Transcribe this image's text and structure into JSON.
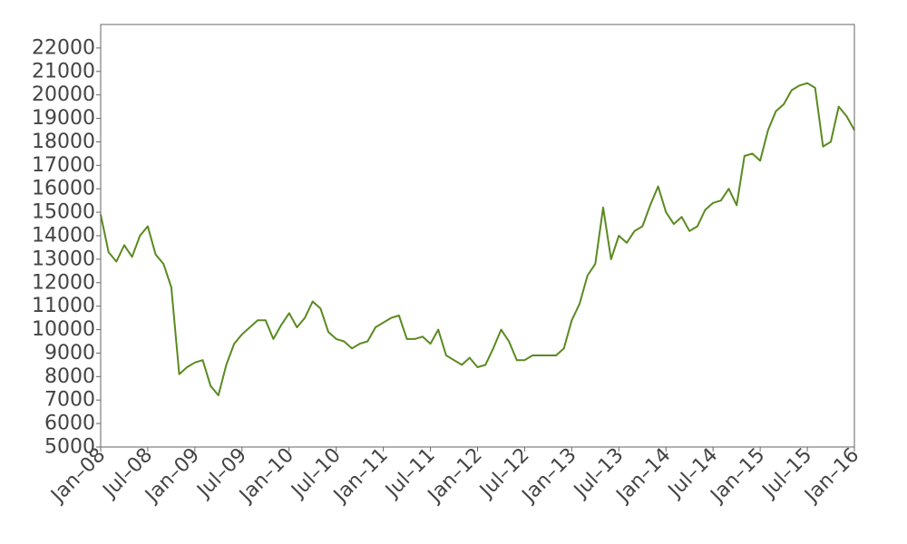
{
  "chart_data": {
    "type": "line",
    "title": "",
    "xlabel": "",
    "ylabel": "",
    "xlim": [
      "2008-01",
      "2016-01"
    ],
    "ylim": [
      5000,
      23000
    ],
    "grid": false,
    "legend": "none",
    "x_tick_labels": [
      "Jan–08",
      "Jul–08",
      "Jan–09",
      "Jul–09",
      "Jan–10",
      "Jul–10",
      "Jan–11",
      "Jul–11",
      "Jan–12",
      "Jul–12",
      "Jan–13",
      "Jul–13",
      "Jan–14",
      "Jul–14",
      "Jan–15",
      "Jul–15",
      "Jan–16"
    ],
    "y_ticks": [
      5000,
      6000,
      7000,
      8000,
      9000,
      10000,
      11000,
      12000,
      13000,
      14000,
      15000,
      16000,
      17000,
      18000,
      19000,
      20000,
      21000,
      22000
    ],
    "series": [
      {
        "color": "#5a8a20",
        "points": [
          [
            "2008-01",
            14900
          ],
          [
            "2008-02",
            13300
          ],
          [
            "2008-03",
            12900
          ],
          [
            "2008-04",
            13600
          ],
          [
            "2008-05",
            13100
          ],
          [
            "2008-06",
            14000
          ],
          [
            "2008-07",
            14400
          ],
          [
            "2008-08",
            13200
          ],
          [
            "2008-09",
            12800
          ],
          [
            "2008-10",
            11800
          ],
          [
            "2008-11",
            8100
          ],
          [
            "2008-12",
            8400
          ],
          [
            "2009-01",
            8600
          ],
          [
            "2009-02",
            8700
          ],
          [
            "2009-03",
            7600
          ],
          [
            "2009-04",
            7200
          ],
          [
            "2009-05",
            8500
          ],
          [
            "2009-06",
            9400
          ],
          [
            "2009-07",
            9800
          ],
          [
            "2009-08",
            10100
          ],
          [
            "2009-09",
            10400
          ],
          [
            "2009-10",
            10400
          ],
          [
            "2009-11",
            9600
          ],
          [
            "2009-12",
            10200
          ],
          [
            "2010-01",
            10700
          ],
          [
            "2010-02",
            10100
          ],
          [
            "2010-03",
            10500
          ],
          [
            "2010-04",
            11200
          ],
          [
            "2010-05",
            10900
          ],
          [
            "2010-06",
            9900
          ],
          [
            "2010-07",
            9600
          ],
          [
            "2010-08",
            9500
          ],
          [
            "2010-09",
            9200
          ],
          [
            "2010-10",
            9400
          ],
          [
            "2010-11",
            9500
          ],
          [
            "2010-12",
            10100
          ],
          [
            "2011-01",
            10300
          ],
          [
            "2011-02",
            10500
          ],
          [
            "2011-03",
            10600
          ],
          [
            "2011-04",
            9600
          ],
          [
            "2011-05",
            9600
          ],
          [
            "2011-06",
            9700
          ],
          [
            "2011-07",
            9400
          ],
          [
            "2011-08",
            10000
          ],
          [
            "2011-09",
            8900
          ],
          [
            "2011-10",
            8700
          ],
          [
            "2011-11",
            8500
          ],
          [
            "2011-12",
            8800
          ],
          [
            "2012-01",
            8400
          ],
          [
            "2012-02",
            8500
          ],
          [
            "2012-03",
            9200
          ],
          [
            "2012-04",
            10000
          ],
          [
            "2012-05",
            9500
          ],
          [
            "2012-06",
            8700
          ],
          [
            "2012-07",
            8700
          ],
          [
            "2012-08",
            8900
          ],
          [
            "2012-09",
            8900
          ],
          [
            "2012-10",
            8900
          ],
          [
            "2012-11",
            8900
          ],
          [
            "2012-12",
            9200
          ],
          [
            "2013-01",
            10400
          ],
          [
            "2013-02",
            11100
          ],
          [
            "2013-03",
            12300
          ],
          [
            "2013-04",
            12800
          ],
          [
            "2013-05",
            15200
          ],
          [
            "2013-06",
            13000
          ],
          [
            "2013-07",
            14000
          ],
          [
            "2013-08",
            13700
          ],
          [
            "2013-09",
            14200
          ],
          [
            "2013-10",
            14400
          ],
          [
            "2013-11",
            15300
          ],
          [
            "2013-12",
            16100
          ],
          [
            "2014-01",
            15000
          ],
          [
            "2014-02",
            14500
          ],
          [
            "2014-03",
            14800
          ],
          [
            "2014-04",
            14200
          ],
          [
            "2014-05",
            14400
          ],
          [
            "2014-06",
            15100
          ],
          [
            "2014-07",
            15400
          ],
          [
            "2014-08",
            15500
          ],
          [
            "2014-09",
            16000
          ],
          [
            "2014-10",
            15300
          ],
          [
            "2014-11",
            17400
          ],
          [
            "2014-12",
            17500
          ],
          [
            "2015-01",
            17200
          ],
          [
            "2015-02",
            18500
          ],
          [
            "2015-03",
            19300
          ],
          [
            "2015-04",
            19600
          ],
          [
            "2015-05",
            20200
          ],
          [
            "2015-06",
            20400
          ],
          [
            "2015-07",
            20500
          ],
          [
            "2015-08",
            20300
          ],
          [
            "2015-09",
            17800
          ],
          [
            "2015-10",
            18000
          ],
          [
            "2015-11",
            19500
          ],
          [
            "2015-12",
            19100
          ],
          [
            "2016-01",
            18500
          ]
        ]
      }
    ]
  }
}
